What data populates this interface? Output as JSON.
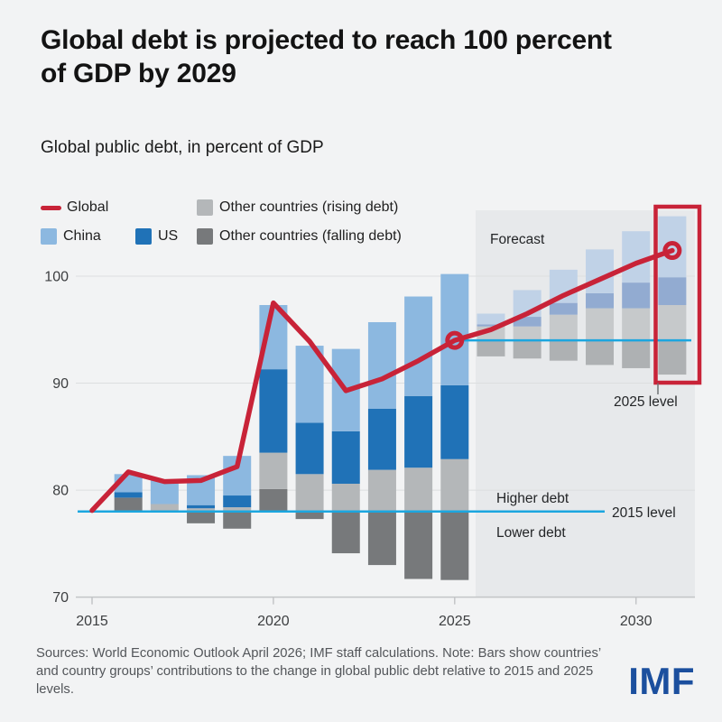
{
  "page": {
    "background": "#f2f3f4"
  },
  "header": {
    "title_line1": "Global debt is projected to reach 100 percent",
    "title_line2": "of GDP by 2029",
    "subtitle": "Global public debt, in percent of GDP"
  },
  "legend": {
    "items": [
      {
        "id": "global",
        "label": "Global"
      },
      {
        "id": "china",
        "label": "China"
      },
      {
        "id": "us",
        "label": "US"
      },
      {
        "id": "rising",
        "label": "Other countries (rising debt)"
      },
      {
        "id": "falling",
        "label": "Other countries (falling debt)"
      }
    ]
  },
  "annotations": {
    "forecast": "Forecast",
    "higher_debt": "Higher debt",
    "lower_debt": "Lower debt",
    "level_2015": "2015 level",
    "level_2025": "2025 level"
  },
  "footer": {
    "source": "Sources: World Economic Outlook April 2026; IMF staff calculations. Note: Bars show countries’ and country groups’ contributions to the change in global public debt relative to 2015 and 2025 levels.",
    "logo": "IMF"
  },
  "chart_data": {
    "type": "combo_stacked_bar_line",
    "title": "Global public debt, in percent of GDP",
    "xlabel": "",
    "ylabel": "percent of GDP",
    "xticks": [
      2015,
      2020,
      2025,
      2030
    ],
    "yticks": [
      70,
      80,
      90,
      100
    ],
    "ylim": [
      70,
      106.5
    ],
    "grid": true,
    "legend_position": "top-left",
    "forecast_start_year": 2026,
    "x_years": [
      2015,
      2016,
      2017,
      2018,
      2019,
      2020,
      2021,
      2022,
      2023,
      2024,
      2025,
      2026,
      2027,
      2028,
      2029,
      2030,
      2031
    ],
    "line_series": {
      "name": "Global",
      "values": [
        78.1,
        81.7,
        80.8,
        80.9,
        82.2,
        97.5,
        93.9,
        89.3,
        90.4,
        92.1,
        94.0,
        95.0,
        96.5,
        98.2,
        99.7,
        101.2,
        102.4
      ]
    },
    "markers": [
      {
        "year": 2025,
        "value": 94.0
      },
      {
        "year": 2031,
        "value": 102.4
      }
    ],
    "baselines": [
      {
        "label": "2015 level",
        "value": 78
      },
      {
        "label": "2025 level",
        "value": 94
      }
    ],
    "bars_note": "segments are contributions in percentage points stacked from base (2015 level for 2016-2025, 2025 level for 2026-2031); negative falling values are drawn below the base line",
    "bars": [
      {
        "year": 2016,
        "base": 78,
        "rising": 0.0,
        "us": 0.5,
        "china": 1.7,
        "falling": 1.3
      },
      {
        "year": 2017,
        "base": 78,
        "rising": 0.7,
        "us": 0.0,
        "china": 2.2,
        "falling": 0.0
      },
      {
        "year": 2018,
        "base": 78,
        "rising": 0.3,
        "us": 0.3,
        "china": 2.8,
        "falling": -1.1
      },
      {
        "year": 2019,
        "base": 78,
        "rising": 0.4,
        "us": 1.1,
        "china": 3.7,
        "falling": -1.6
      },
      {
        "year": 2020,
        "base": 78,
        "rising": 3.4,
        "us": 7.8,
        "china": 6.0,
        "falling": 2.1
      },
      {
        "year": 2021,
        "base": 78,
        "rising": 3.5,
        "us": 4.8,
        "china": 7.2,
        "falling": -0.7
      },
      {
        "year": 2022,
        "base": 78,
        "rising": 2.6,
        "us": 4.9,
        "china": 7.7,
        "falling": -3.9
      },
      {
        "year": 2023,
        "base": 78,
        "rising": 3.9,
        "us": 5.7,
        "china": 8.1,
        "falling": -5.0
      },
      {
        "year": 2024,
        "base": 78,
        "rising": 4.1,
        "us": 6.7,
        "china": 9.3,
        "falling": -6.3
      },
      {
        "year": 2025,
        "base": 78,
        "rising": 4.9,
        "us": 6.9,
        "china": 10.4,
        "falling": -6.4
      },
      {
        "year": 2026,
        "base": 94,
        "rising": 1.3,
        "us": 0.2,
        "china": 1.0,
        "falling": -1.5
      },
      {
        "year": 2027,
        "base": 94,
        "rising": 1.3,
        "us": 0.9,
        "china": 2.5,
        "falling": -1.7
      },
      {
        "year": 2028,
        "base": 94,
        "rising": 2.4,
        "us": 1.1,
        "china": 3.1,
        "falling": -1.9
      },
      {
        "year": 2029,
        "base": 94,
        "rising": 3.0,
        "us": 1.4,
        "china": 4.1,
        "falling": -2.3
      },
      {
        "year": 2030,
        "base": 94,
        "rising": 3.0,
        "us": 2.4,
        "china": 4.8,
        "falling": -2.6
      },
      {
        "year": 2031,
        "base": 94,
        "rising": 3.3,
        "us": 2.6,
        "china": 5.7,
        "falling": -3.2
      }
    ],
    "colors": {
      "global": "#c82338",
      "level_line": "#1ba6df",
      "grid": "#dcdedf",
      "axis": "#c3c5c7",
      "forecast_bg": "#e7e9eb",
      "history": {
        "china": "#8cb8e0",
        "us": "#2072b7",
        "rising": "#b4b7b9",
        "falling": "#77797b"
      },
      "forecast": {
        "china": "#c0d2e7",
        "us": "#92abd1",
        "rising": "#c6c9cb",
        "falling": "#aeb1b3"
      }
    }
  }
}
